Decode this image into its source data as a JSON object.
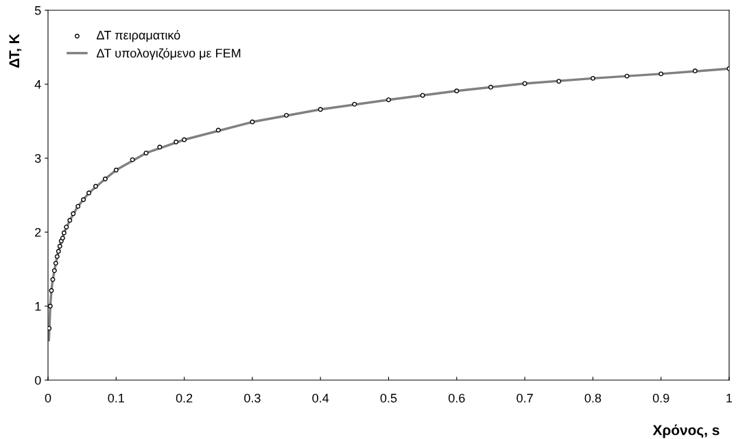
{
  "chart_data": {
    "type": "scatter",
    "xlabel": "Χρόνος, s",
    "ylabel": "ΔΤ, K",
    "xlim": [
      0,
      1
    ],
    "ylim": [
      0,
      5
    ],
    "xticks": [
      0,
      0.1,
      0.2,
      0.3,
      0.4,
      0.5,
      0.6,
      0.7,
      0.8,
      0.9,
      1
    ],
    "yticks": [
      0,
      1,
      2,
      3,
      4,
      5
    ],
    "grid": false,
    "legend": "top left",
    "series": [
      {
        "name": "ΔΤ πειραματικό",
        "marker": "circle",
        "color": "#000000",
        "x": [
          0.0017,
          0.0033,
          0.005,
          0.007,
          0.0094,
          0.0114,
          0.0134,
          0.0154,
          0.0174,
          0.0194,
          0.0215,
          0.0235,
          0.027,
          0.032,
          0.037,
          0.044,
          0.052,
          0.06,
          0.07,
          0.084,
          0.1,
          0.124,
          0.144,
          0.164,
          0.188,
          0.2,
          0.25,
          0.3,
          0.35,
          0.4,
          0.45,
          0.5,
          0.55,
          0.6,
          0.65,
          0.7,
          0.75,
          0.8,
          0.85,
          0.9,
          0.95,
          1.0
        ],
        "values": [
          0.7,
          1.0,
          1.21,
          1.36,
          1.48,
          1.58,
          1.67,
          1.74,
          1.81,
          1.88,
          1.92,
          1.99,
          2.07,
          2.16,
          2.25,
          2.35,
          2.44,
          2.53,
          2.62,
          2.72,
          2.84,
          2.98,
          3.07,
          3.15,
          3.22,
          3.25,
          3.38,
          3.49,
          3.58,
          3.66,
          3.73,
          3.79,
          3.85,
          3.91,
          3.96,
          4.01,
          4.04,
          4.08,
          4.11,
          4.14,
          4.18,
          4.21
        ]
      },
      {
        "name": "ΔΤ υπολογιζόμενο με FEM",
        "type": "line",
        "marker": "none",
        "line_style": "solid",
        "color": "#808080",
        "x": [
          0.0013,
          0.0033,
          0.005,
          0.007,
          0.0094,
          0.0134,
          0.0174,
          0.0235,
          0.032,
          0.044,
          0.06,
          0.084,
          0.1,
          0.144,
          0.2,
          0.3,
          0.4,
          0.5,
          0.6,
          0.7,
          0.8,
          0.9,
          1.0
        ],
        "values": [
          0.54,
          1.0,
          1.21,
          1.36,
          1.48,
          1.67,
          1.81,
          1.99,
          2.16,
          2.35,
          2.53,
          2.72,
          2.84,
          3.07,
          3.25,
          3.49,
          3.66,
          3.79,
          3.91,
          4.01,
          4.08,
          4.14,
          4.21
        ]
      }
    ]
  }
}
